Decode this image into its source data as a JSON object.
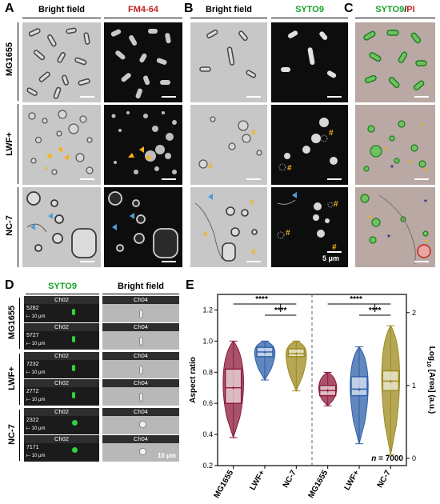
{
  "panels": {
    "A": {
      "letter": "A",
      "col1": "Bright field",
      "col2": "FM4-64"
    },
    "B": {
      "letter": "B",
      "col1": "Bright field",
      "col2": "SYTO9"
    },
    "C": {
      "letter": "C",
      "col1_part1": "SYTO9",
      "col1_sep": "/",
      "col1_part2": "PI"
    },
    "rows": [
      "MG1655",
      "LWF+",
      "NC-7"
    ],
    "scale_label": "5 μm",
    "hash": "#",
    "star": "*",
    "D": {
      "letter": "D",
      "col1": "SYTO9",
      "col2": "Bright field",
      "ch_left": "Ch02",
      "ch_right": "Ch04",
      "scale": "10 μm",
      "bottom_scale": "10 μm",
      "groups": [
        {
          "name": "MG1655",
          "ids": [
            "5282",
            "5727"
          ]
        },
        {
          "name": "LWF+",
          "ids": [
            "7232",
            "2772"
          ]
        },
        {
          "name": "NC-7",
          "ids": [
            "2322",
            "7171"
          ]
        }
      ]
    },
    "E": {
      "letter": "E"
    }
  },
  "colors": {
    "fm464": "#c0221d",
    "syto9": "#13a323",
    "pi": "#c0221d",
    "arrow_orange": "#f2b318",
    "arrow_blue": "#4b9fd8",
    "mg1655": "#8b1a3a",
    "lwf": "#2c5fa8",
    "nc7": "#9c8a1e"
  },
  "chart_data": {
    "type": "violin",
    "ylabel": "Aspect ratio",
    "ylabel_right": "Log10 [Area] (a.u.)",
    "ylabel_right_parts": {
      "a": "Log",
      "sub": "10",
      "b": " [Area] (a.u.)"
    },
    "ylim": [
      0.2,
      1.3
    ],
    "yticks": [
      "0.2",
      "0.4",
      "0.6",
      "0.8",
      "1.0",
      "1.2"
    ],
    "ylim_right": [
      -0.1,
      2.25
    ],
    "yticks_right": [
      "0",
      "1",
      "2"
    ],
    "categories": [
      "MG1655",
      "LWF+",
      "NC-7",
      "MG1655",
      "LWF+",
      "NC-7"
    ],
    "series": [
      {
        "name": "Aspect ratio",
        "values": [
          {
            "min": 0.38,
            "q1": 0.6,
            "median": 0.7,
            "q3": 0.82,
            "max": 1.0
          },
          {
            "min": 0.75,
            "q1": 0.9,
            "median": 0.93,
            "q3": 0.96,
            "max": 1.0
          },
          {
            "min": 0.68,
            "q1": 0.9,
            "median": 0.92,
            "q3": 0.95,
            "max": 1.0
          }
        ]
      },
      {
        "name": "Log10 [Area]",
        "values": [
          {
            "min": 0.72,
            "q1": 0.86,
            "median": 0.93,
            "q3": 1.0,
            "max": 1.18
          },
          {
            "min": 0.2,
            "q1": 0.86,
            "median": 0.95,
            "q3": 1.12,
            "max": 1.53
          },
          {
            "min": 0.05,
            "q1": 0.93,
            "median": 1.06,
            "q3": 1.2,
            "max": 1.82
          }
        ]
      }
    ],
    "significance": "****",
    "n_label": "n",
    "n_value": " = 7000"
  }
}
